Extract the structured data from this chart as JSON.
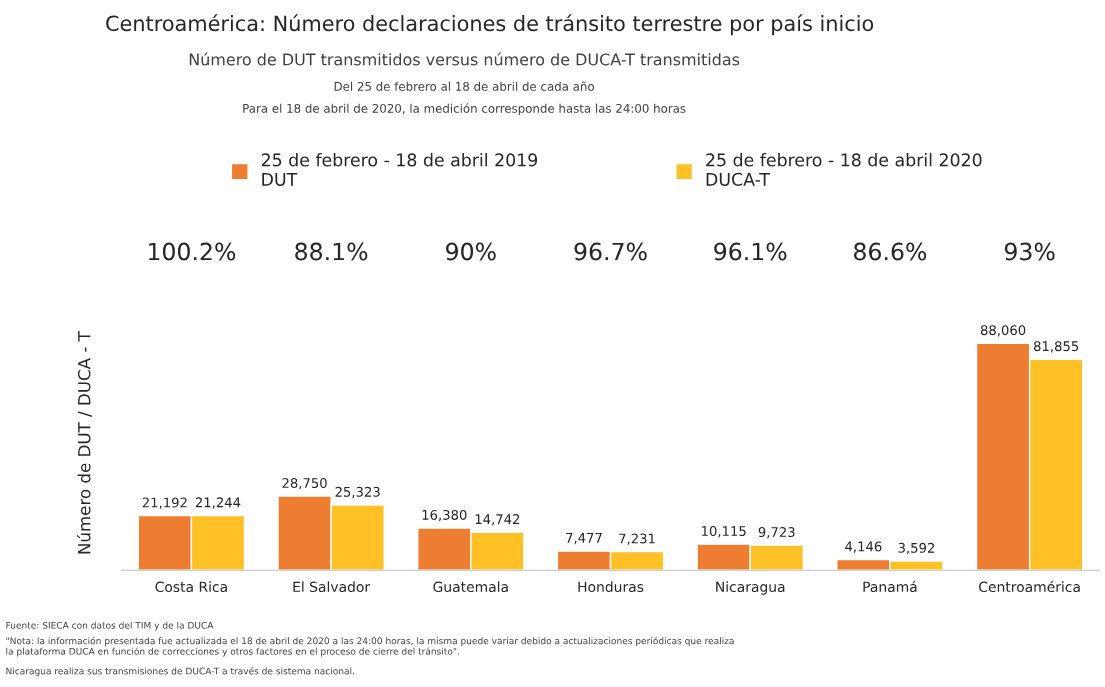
{
  "chart_data": {
    "type": "bar",
    "title": "Centroamérica: Número declaraciones de tránsito terrestre por país inicio",
    "subtitle": "Número de DUT transmitidos versus número de DUCA-T transmitidas",
    "ylabel": "Número de DUT / DUCA - T",
    "categories": [
      "Costa Rica",
      "El Salvador",
      "Guatemala",
      "Honduras",
      "Nicaragua",
      "Panamá",
      "Centroamérica"
    ],
    "series": [
      {
        "name": "25 de febrero - 18 de abril 2019\nDUT",
        "color": "#ed7d31",
        "values": [
          21192,
          28750,
          16380,
          7477,
          10115,
          4146,
          88060
        ],
        "value_labels": [
          "21,192",
          "28,750",
          "16,380",
          "7,477",
          "10,115",
          "4,146",
          "88,060"
        ]
      },
      {
        "name": "25 de febrero - 18 de abril 2020\nDUCA-T",
        "color": "#ffc125",
        "values": [
          21244,
          25323,
          14742,
          7231,
          9723,
          3592,
          81855
        ],
        "value_labels": [
          "21,244",
          "25,323",
          "14,742",
          "7,231",
          "9,723",
          "3,592",
          "81,855"
        ]
      }
    ],
    "legend": "top",
    "annotations": [
      "Del 25 de febrero al 18 de abril de cada año",
      "Para el 18 de abril de 2020, la medición corresponde hasta las 24:00 horas",
      "100.2%",
      "88.1%",
      "90%",
      "96.7%",
      "96.1%",
      "86.6%",
      "93%",
      "Fuente: SIECA con datos del TIM y de la DUCA",
      "\"Nota: la información presentada fue actualizada el 18 de abril de 2020 a las 24:00 horas, la misma puede variar debido a actualizaciones periódicas que realiza\nla plataforma DUCA en función de correcciones y otros factores en el proceso de cierre del tránsito\".",
      "Nicaragua realiza sus transmisiones de DUCA-T a través de sistema nacional."
    ]
  }
}
